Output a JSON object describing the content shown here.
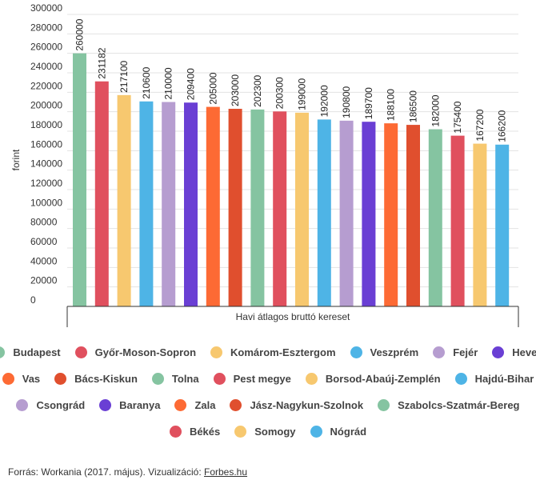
{
  "chart_data": {
    "type": "bar",
    "xlabel": "Havi átlagos bruttó kereset",
    "ylabel": "forint",
    "ylim": [
      0,
      300000
    ],
    "yticks": [
      0,
      20000,
      40000,
      60000,
      80000,
      100000,
      120000,
      140000,
      160000,
      180000,
      200000,
      220000,
      240000,
      260000,
      280000,
      300000
    ],
    "legend_position": "bottom",
    "categories": [
      "Budapest",
      "Győr-Moson-Sopron",
      "Komárom-Esztergom",
      "Veszprém",
      "Fejér",
      "Heves",
      "Vas",
      "Bács-Kiskun",
      "Tolna",
      "Pest megye",
      "Borsod-Abaúj-Zemplén",
      "Hajdú-Bihar",
      "Csongrád",
      "Baranya",
      "Zala",
      "Jász-Nagykun-Szolnok",
      "Szabolcs-Szatmár-Bereg",
      "Békés",
      "Somogy",
      "Nógrád"
    ],
    "values": [
      260000,
      231182,
      217100,
      210600,
      210000,
      209400,
      205000,
      203000,
      202300,
      200300,
      199000,
      192000,
      190800,
      189700,
      188100,
      186500,
      182000,
      175400,
      167200,
      166200
    ],
    "data_labels": [
      "260000",
      "231182",
      "217100",
      "210600",
      "210000",
      "209400",
      "205000",
      "203000",
      "202300",
      "200300",
      "199000",
      "192000",
      "190800",
      "189700",
      "188100",
      "186500",
      "182000",
      "175400",
      "167200",
      "166200"
    ],
    "colors": [
      "#85c4a1",
      "#e0505e",
      "#f7c86f",
      "#4eb4e6",
      "#b69dd0",
      "#6a3fd4",
      "#fd6a34",
      "#e04f2e",
      "#85c4a1",
      "#e0505e",
      "#f7c86f",
      "#4eb4e6",
      "#b69dd0",
      "#6a3fd4",
      "#fd6a34",
      "#e04f2e",
      "#85c4a1",
      "#e0505e",
      "#f7c86f",
      "#4eb4e6"
    ]
  },
  "legend_rows": [
    [
      "Budapest",
      "Győr-Moson-Sopron",
      "Komárom-Esztergom",
      "Veszprém",
      "Fejér",
      "Heves"
    ],
    [
      "Vas",
      "Bács-Kiskun",
      "Tolna",
      "Pest megye",
      "Borsod-Abaúj-Zemplén",
      "Hajdú-Bihar"
    ],
    [
      "Csongrád",
      "Baranya",
      "Zala",
      "Jász-Nagykun-Szolnok",
      "Szabolcs-Szatmár-Bereg"
    ],
    [
      "Békés",
      "Somogy",
      "Nógrád"
    ]
  ],
  "footer": {
    "text": "Forrás: Workania (2017. május). Vizualizáció: ",
    "link": "Forbes.hu"
  }
}
